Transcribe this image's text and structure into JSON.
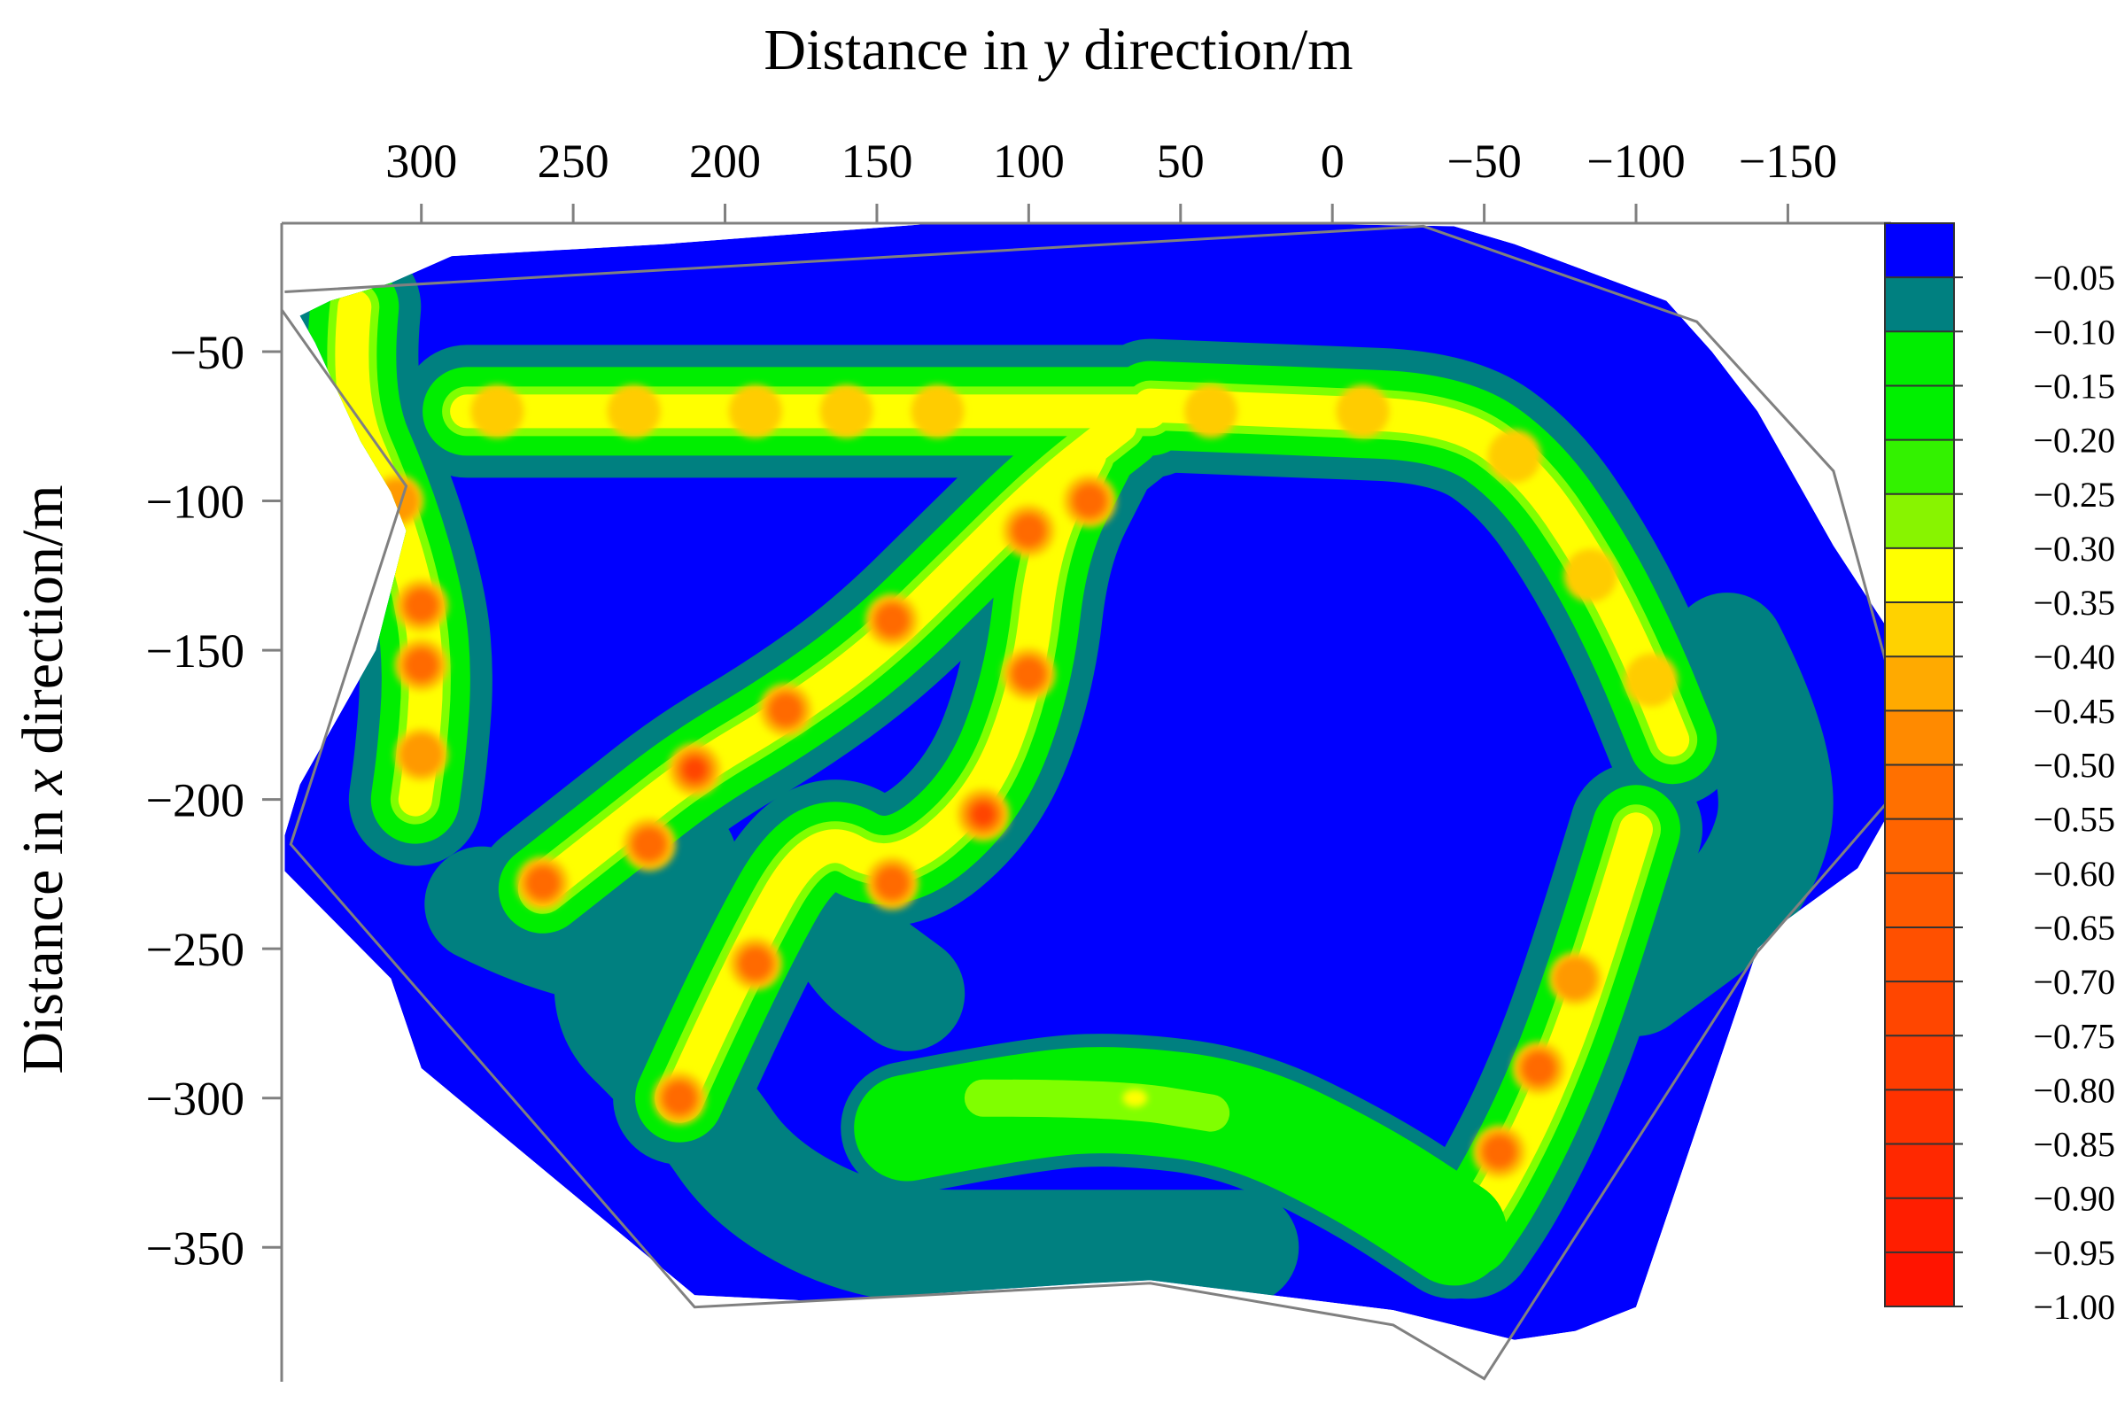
{
  "chart_data": {
    "type": "heatmap",
    "title": "",
    "xaxis": {
      "label": "Distance in y direction/m",
      "label_parts": [
        "Distance in ",
        "y",
        " direction/m"
      ],
      "position": "top",
      "reversed": true,
      "range": [
        346,
        -184
      ],
      "ticks": [
        300,
        250,
        200,
        150,
        100,
        50,
        0,
        -50,
        -100,
        -150
      ],
      "tick_labels": [
        "300",
        "250",
        "200",
        "150",
        "100",
        "50",
        "0",
        "−50",
        "−100",
        "−150"
      ]
    },
    "yaxis": {
      "label": "Distance in x direction/m",
      "label_parts": [
        "Distance in ",
        "x",
        " direction/m"
      ],
      "position": "left",
      "range": [
        -7,
        -395
      ],
      "ticks": [
        -50,
        -100,
        -150,
        -200,
        -250,
        -300,
        -350
      ],
      "tick_labels": [
        "−50",
        "−100",
        "−150",
        "−200",
        "−250",
        "−300",
        "−350"
      ]
    },
    "grid": false,
    "colorbar": {
      "position": "right",
      "labels": [
        "−0.05",
        "−0.10",
        "−0.15",
        "−0.20",
        "−0.25",
        "−0.30",
        "−0.35",
        "−0.40",
        "−0.45",
        "−0.50",
        "−0.55",
        "−0.60",
        "−0.65",
        "−0.70",
        "−0.75",
        "−0.80",
        "−0.85",
        "−0.90",
        "−0.95",
        "−1.00"
      ],
      "colors": [
        "#0000ff",
        "#008080",
        "#00ee00",
        "#00f000",
        "#33f200",
        "#88f400",
        "#ffff00",
        "#ffd200",
        "#ffaa00",
        "#ff8a00",
        "#ff7000",
        "#ff6400",
        "#ff5a00",
        "#ff5000",
        "#ff4600",
        "#ff3c00",
        "#ff3200",
        "#ff2800",
        "#ff1e00",
        "#ff1400"
      ]
    },
    "levels": [
      {
        "band": "-0.05 to 0",
        "color": "#0000ff"
      },
      {
        "band": "-0.10 to -0.05",
        "color": "#008080"
      },
      {
        "band": "-0.20 to -0.10",
        "color": "#00ee00"
      },
      {
        "band": "-0.25 to -0.20",
        "color": "#80ff00"
      },
      {
        "band": "-0.30 to -0.25",
        "color": "#ffff00"
      },
      {
        "band": "-0.40 to -0.30",
        "color": "#ffcc00"
      },
      {
        "band": "-0.50 to -0.40",
        "color": "#ff9900"
      },
      {
        "band": "-0.60 to -0.50",
        "color": "#ff6a00"
      },
      {
        "band": "-0.80 to -0.60",
        "color": "#ff4400"
      }
    ],
    "boundary": [
      [
        340,
        -38
      ],
      [
        330,
        -33
      ],
      [
        310,
        -27
      ],
      [
        290,
        -18
      ],
      [
        220,
        -14
      ],
      [
        130,
        -7
      ],
      [
        20,
        -7
      ],
      [
        -40,
        -8
      ],
      [
        -60,
        -14
      ],
      [
        -110,
        -33
      ],
      [
        -125,
        -50
      ],
      [
        -140,
        -70
      ],
      [
        -165,
        -115
      ],
      [
        -183,
        -143
      ],
      [
        -183,
        -205
      ],
      [
        -173,
        -223
      ],
      [
        -150,
        -240
      ],
      [
        -140,
        -250
      ],
      [
        -100,
        -370
      ],
      [
        -80,
        -378
      ],
      [
        -60,
        -381
      ],
      [
        -20,
        -371
      ],
      [
        60,
        -361
      ],
      [
        80,
        -362
      ],
      [
        170,
        -368
      ],
      [
        210,
        -366
      ],
      [
        300,
        -290
      ],
      [
        310,
        -260
      ],
      [
        345,
        -224
      ],
      [
        345,
        -212
      ],
      [
        340,
        -195
      ],
      [
        315,
        -150
      ],
      [
        305,
        -110
      ],
      [
        310,
        -97
      ],
      [
        320,
        -80
      ],
      [
        335,
        -47
      ]
    ],
    "frame_outline": [
      [
        346,
        -36
      ],
      [
        305,
        -95
      ],
      [
        343,
        -215
      ],
      [
        210,
        -370
      ],
      [
        60,
        -362
      ],
      [
        -20,
        -376
      ],
      [
        -50,
        -394
      ],
      [
        -140,
        -251
      ],
      [
        -192,
        -190
      ],
      [
        -165,
        -90
      ],
      [
        -120,
        -40
      ],
      [
        -30,
        -8
      ],
      [
        345,
        -30
      ]
    ],
    "bands": [
      {
        "name": "upper-left-vertical",
        "path": [
          [
            322,
            -35
          ],
          [
            325,
            -65
          ],
          [
            310,
            -100
          ],
          [
            300,
            -135
          ],
          [
            298,
            -160
          ],
          [
            300,
            -185
          ],
          [
            302,
            -200
          ]
        ],
        "peaks": [
          [
            300,
            -135,
            -0.55
          ],
          [
            300,
            -155,
            -0.55
          ],
          [
            300,
            -185,
            -0.48
          ],
          [
            308,
            -100,
            -0.4
          ]
        ]
      },
      {
        "name": "top-horizontal",
        "path": [
          [
            285,
            -70
          ],
          [
            230,
            -70
          ],
          [
            180,
            -70
          ],
          [
            140,
            -70
          ],
          [
            120,
            -70
          ],
          [
            90,
            -70
          ],
          [
            60,
            -70
          ]
        ],
        "peaks": [
          [
            275,
            -70,
            -0.38
          ],
          [
            230,
            -70,
            -0.38
          ],
          [
            190,
            -70,
            -0.38
          ],
          [
            160,
            -70,
            -0.38
          ],
          [
            130,
            -70,
            -0.35
          ]
        ]
      },
      {
        "name": "diagonal-west",
        "path": [
          [
            260,
            -230
          ],
          [
            235,
            -210
          ],
          [
            210,
            -190
          ],
          [
            180,
            -172
          ],
          [
            150,
            -150
          ],
          [
            120,
            -120
          ],
          [
            95,
            -95
          ],
          [
            70,
            -75
          ]
        ],
        "peaks": [
          [
            260,
            -228,
            -0.5
          ],
          [
            225,
            -215,
            -0.5
          ],
          [
            210,
            -190,
            -0.6
          ],
          [
            180,
            -170,
            -0.55
          ],
          [
            145,
            -140,
            -0.55
          ],
          [
            100,
            -110,
            -0.5
          ],
          [
            80,
            -100,
            -0.55
          ]
        ]
      },
      {
        "name": "diagonal-east",
        "path": [
          [
            215,
            -300
          ],
          [
            195,
            -255
          ],
          [
            170,
            -210
          ],
          [
            145,
            -225
          ],
          [
            115,
            -200
          ],
          [
            100,
            -160
          ],
          [
            95,
            -115
          ],
          [
            80,
            -85
          ]
        ],
        "peaks": [
          [
            215,
            -300,
            -0.5
          ],
          [
            190,
            -255,
            -0.5
          ],
          [
            145,
            -228,
            -0.55
          ],
          [
            115,
            -205,
            -0.6
          ],
          [
            100,
            -158,
            -0.55
          ],
          [
            100,
            -110,
            -0.5
          ]
        ]
      },
      {
        "name": "east-arc",
        "path": [
          [
            60,
            -68
          ],
          [
            10,
            -70
          ],
          [
            -40,
            -72
          ],
          [
            -65,
            -90
          ],
          [
            -85,
            -120
          ],
          [
            -100,
            -150
          ],
          [
            -112,
            -180
          ]
        ],
        "peaks": [
          [
            40,
            -70,
            -0.38
          ],
          [
            -10,
            -70,
            -0.38
          ],
          [
            -60,
            -85,
            -0.38
          ],
          [
            -85,
            -125,
            -0.38
          ],
          [
            -105,
            -160,
            -0.38
          ]
        ]
      },
      {
        "name": "east-lower",
        "path": [
          [
            -100,
            -210
          ],
          [
            -85,
            -260
          ],
          [
            -70,
            -300
          ],
          [
            -55,
            -330
          ],
          [
            -45,
            -345
          ]
        ],
        "peaks": [
          [
            -80,
            -260,
            -0.42
          ],
          [
            -68,
            -290,
            -0.5
          ],
          [
            -55,
            -318,
            -0.55
          ]
        ]
      },
      {
        "name": "south-arc",
        "path": [
          [
            140,
            -310
          ],
          [
            100,
            -302
          ],
          [
            70,
            -300
          ],
          [
            30,
            -305
          ],
          [
            -10,
            -325
          ],
          [
            -40,
            -345
          ]
        ],
        "peaks": [
          [
            65,
            -300,
            -0.28
          ]
        ]
      }
    ]
  }
}
